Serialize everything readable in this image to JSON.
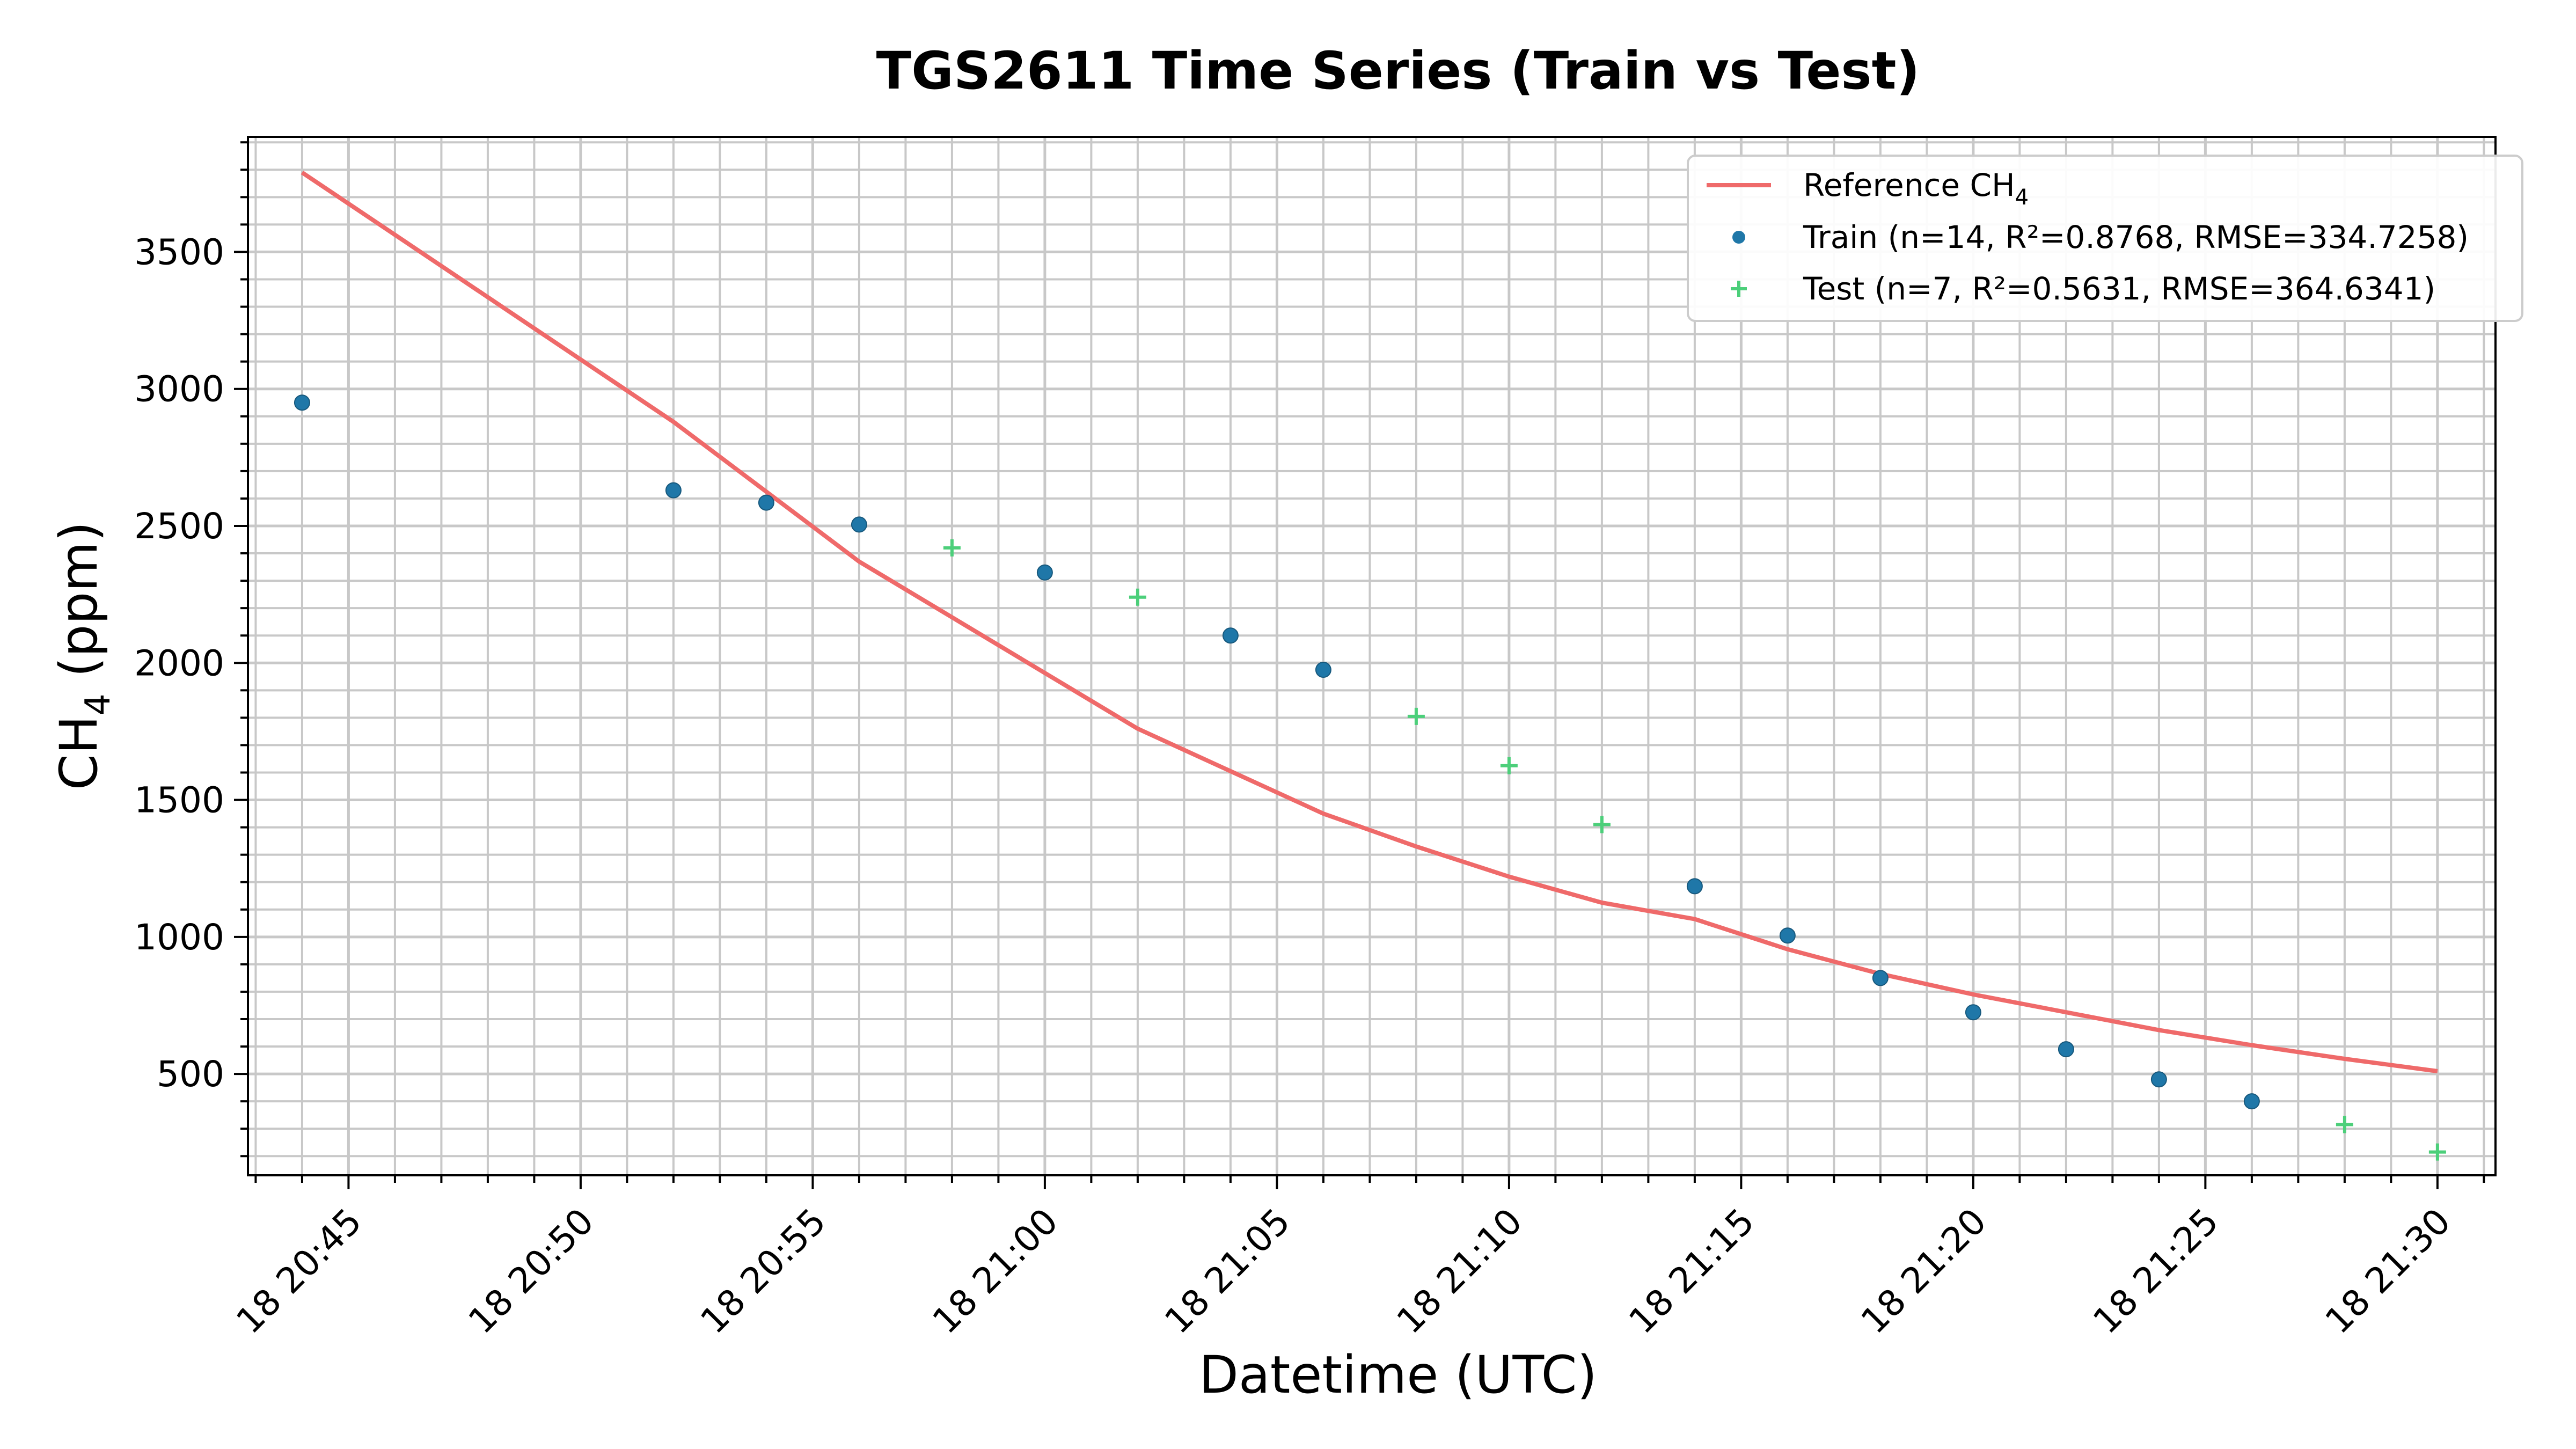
{
  "chart_data": {
    "type": "line",
    "title": "TGS2611 Time Series (Train vs Test)",
    "xlabel": "Datetime (UTC)",
    "ylabel_main": "CH",
    "ylabel_sub": "4",
    "ylabel_tail": " (ppm)",
    "x_ticks": [
      "18 20:45",
      "18 20:50",
      "18 20:55",
      "18 21:00",
      "18 21:05",
      "18 21:10",
      "18 21:15",
      "18 21:20",
      "18 21:25",
      "18 21:30"
    ],
    "y_ticks": [
      "500",
      "1000",
      "1500",
      "2000",
      "2500",
      "3000",
      "3500"
    ],
    "xlim": [
      "20:42:50",
      "21:31:15"
    ],
    "ylim": [
      130,
      3920
    ],
    "grid": true,
    "legend_position": "top-right",
    "legend": {
      "reference_main": "Reference CH",
      "reference_sub": "4",
      "train": "Train (n=14, R²=0.8768, RMSE=334.7258)",
      "test": "Test (n=7, R²=0.5631, RMSE=364.6341)"
    },
    "colors": {
      "reference": "#ef6a6a",
      "train": "#1f77a8",
      "test": "#4ccf7a",
      "grid": "#c8c8c8"
    },
    "series": [
      {
        "name": "Reference CH4",
        "kind": "line",
        "points": [
          {
            "x": "20:44",
            "y": 3790
          },
          {
            "x": "20:52",
            "y": 2880
          },
          {
            "x": "20:56",
            "y": 2370
          },
          {
            "x": "21:02",
            "y": 1760
          },
          {
            "x": "21:06",
            "y": 1450
          },
          {
            "x": "21:08",
            "y": 1330
          },
          {
            "x": "21:10",
            "y": 1220
          },
          {
            "x": "21:12",
            "y": 1125
          },
          {
            "x": "21:14",
            "y": 1065
          },
          {
            "x": "21:16",
            "y": 955
          },
          {
            "x": "21:18",
            "y": 865
          },
          {
            "x": "21:20",
            "y": 790
          },
          {
            "x": "21:22",
            "y": 725
          },
          {
            "x": "21:24",
            "y": 660
          },
          {
            "x": "21:26",
            "y": 605
          },
          {
            "x": "21:28",
            "y": 555
          },
          {
            "x": "21:30",
            "y": 510
          }
        ]
      },
      {
        "name": "Train (n=14, R²=0.8768, RMSE=334.7258)",
        "kind": "scatter-dot",
        "points": [
          {
            "x": "20:44",
            "y": 2950
          },
          {
            "x": "20:52",
            "y": 2630
          },
          {
            "x": "20:54",
            "y": 2585
          },
          {
            "x": "20:56",
            "y": 2505
          },
          {
            "x": "21:00",
            "y": 2330
          },
          {
            "x": "21:04",
            "y": 2100
          },
          {
            "x": "21:06",
            "y": 1975
          },
          {
            "x": "21:14",
            "y": 1185
          },
          {
            "x": "21:16",
            "y": 1005
          },
          {
            "x": "21:18",
            "y": 850
          },
          {
            "x": "21:20",
            "y": 725
          },
          {
            "x": "21:22",
            "y": 590
          },
          {
            "x": "21:24",
            "y": 480
          },
          {
            "x": "21:26",
            "y": 400
          }
        ]
      },
      {
        "name": "Test (n=7, R²=0.5631, RMSE=364.6341)",
        "kind": "scatter-plus",
        "points": [
          {
            "x": "20:58",
            "y": 2420
          },
          {
            "x": "21:02",
            "y": 2240
          },
          {
            "x": "21:08",
            "y": 1805
          },
          {
            "x": "21:10",
            "y": 1625
          },
          {
            "x": "21:12",
            "y": 1410
          },
          {
            "x": "21:28",
            "y": 315
          },
          {
            "x": "21:30",
            "y": 215
          }
        ]
      }
    ]
  }
}
